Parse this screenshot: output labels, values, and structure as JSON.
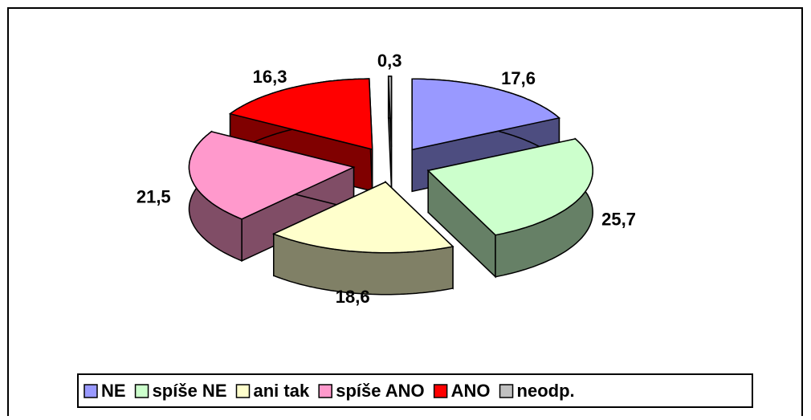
{
  "chart_data": {
    "type": "pie3d",
    "categories": [
      "NE",
      "spíše NE",
      "ani tak",
      "spíše ANO",
      "ANO",
      "neodp."
    ],
    "series": [
      {
        "values": [
          17.6,
          25.7,
          18.6,
          21.5,
          16.3,
          0.3
        ],
        "value_labels": [
          "17,6",
          "25,7",
          "18,6",
          "21,5",
          "16,3",
          "0,3"
        ],
        "colors": [
          "#9999ff",
          "#ccffcc",
          "#ffffcc",
          "#ff99cc",
          "#ff0000",
          "#c0c0c0"
        ]
      }
    ],
    "legend": "bottom"
  }
}
